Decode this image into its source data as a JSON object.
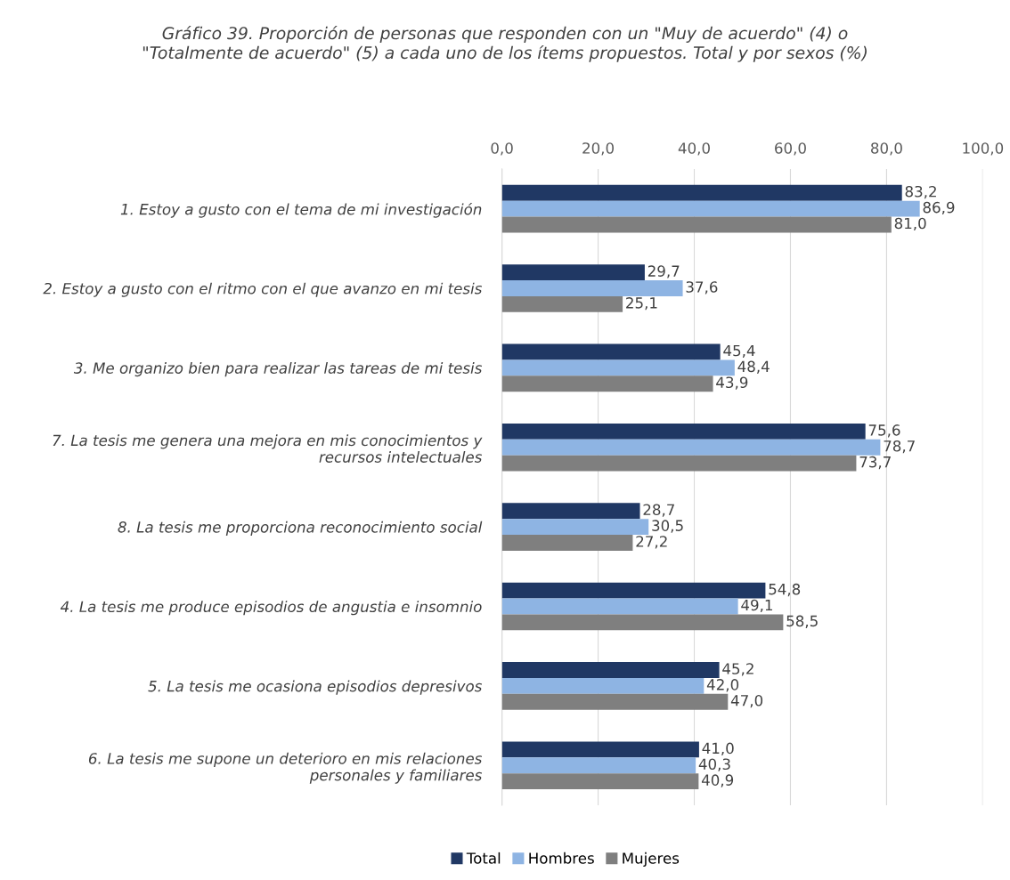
{
  "chart_data": {
    "type": "bar",
    "orientation": "horizontal",
    "title": "Gráfico 39. Proporción de personas que responden con un \"Muy de acuerdo\" (4) o\n\"Totalmente de acuerdo\" (5) a cada uno de los ítems propuestos. Total y por sexos (%)",
    "categories": [
      "1. Estoy a gusto con el tema de mi investigación",
      "2. Estoy a gusto con el ritmo con el que avanzo en mi tesis",
      "3. Me organizo bien para realizar las tareas de mi tesis",
      "7. La tesis me genera una mejora en mis conocimientos y\nrecursos intelectuales",
      "8. La tesis me proporciona reconocimiento social",
      "4. La tesis me produce episodios de angustia e insomnio",
      "5. La tesis me ocasiona episodios depresivos",
      "6. La tesis me supone un deterioro en mis relaciones\npersonales y familiares"
    ],
    "series": [
      {
        "name": "Total",
        "color": "#203864",
        "values": [
          83.2,
          29.7,
          45.4,
          75.6,
          28.7,
          54.8,
          45.2,
          41.0
        ],
        "value_labels": [
          "83,2",
          "29,7",
          "45,4",
          "75,6",
          "28,7",
          "54,8",
          "45,2",
          "41,0"
        ]
      },
      {
        "name": "Hombres",
        "color": "#8eb4e3",
        "values": [
          86.9,
          37.6,
          48.4,
          78.7,
          30.5,
          49.1,
          42.0,
          40.3
        ],
        "value_labels": [
          "86,9",
          "37,6",
          "48,4",
          "78,7",
          "30,5",
          "49,1",
          "42,0",
          "40,3"
        ]
      },
      {
        "name": "Mujeres",
        "color": "#7f7f7f",
        "values": [
          81.0,
          25.1,
          43.9,
          73.7,
          27.2,
          58.5,
          47.0,
          40.9
        ],
        "value_labels": [
          "81,0",
          "25,1",
          "43,9",
          "73,7",
          "27,2",
          "58,5",
          "47,0",
          "40,9"
        ]
      }
    ],
    "xlim": [
      0,
      100
    ],
    "xticks": [
      {
        "value": 0,
        "label": "0,0"
      },
      {
        "value": 20,
        "label": "20,0"
      },
      {
        "value": 40,
        "label": "40,0"
      },
      {
        "value": 60,
        "label": "60,0"
      },
      {
        "value": 80,
        "label": "80,0"
      },
      {
        "value": 100,
        "label": "100,0"
      }
    ],
    "grid": "x",
    "legend": "bottom"
  }
}
